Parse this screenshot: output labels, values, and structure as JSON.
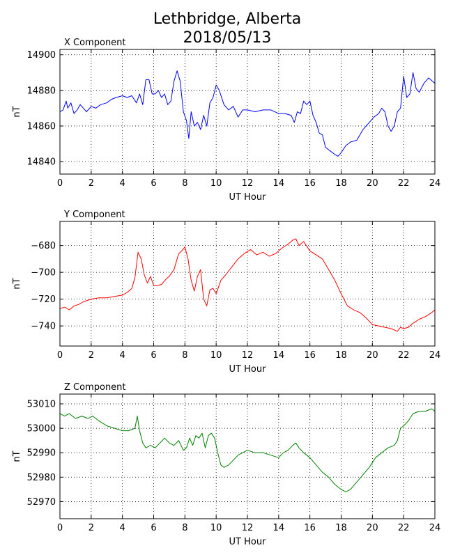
{
  "figure": {
    "title_line1": "Lethbridge, Alberta",
    "title_line2": "2018/05/13"
  },
  "chart_data": [
    {
      "type": "line",
      "title": "X Component",
      "xlabel": "UT Hour",
      "ylabel": "nT",
      "xlim": [
        0,
        24
      ],
      "ylim": [
        14833,
        14903
      ],
      "xticks": [
        0,
        2,
        4,
        6,
        8,
        10,
        12,
        14,
        16,
        18,
        20,
        22,
        24
      ],
      "yticks": [
        14840,
        14860,
        14880,
        14900
      ],
      "grid": true,
      "color": "#0000ff",
      "series": [
        {
          "x": [
            0,
            0.2,
            0.4,
            0.5,
            0.7,
            0.9,
            1.1,
            1.3,
            1.5,
            1.7,
            2,
            2.3,
            2.6,
            3,
            3.3,
            3.6,
            4,
            4.3,
            4.6,
            4.9,
            5.1,
            5.3,
            5.5,
            5.7,
            5.9,
            6.1,
            6.3,
            6.5,
            6.7,
            6.9,
            7.1,
            7.3,
            7.5,
            7.7,
            7.9,
            8.1,
            8.25,
            8.4,
            8.6,
            8.8,
            9,
            9.2,
            9.4,
            9.6,
            9.8,
            10,
            10.2,
            10.5,
            10.8,
            11.1,
            11.4,
            11.7,
            12,
            12.5,
            13,
            13.5,
            14,
            14.4,
            14.8,
            15,
            15.2,
            15.4,
            15.6,
            15.8,
            16,
            16.2,
            16.4,
            16.6,
            16.8,
            17,
            17.3,
            17.6,
            17.8,
            18,
            18.3,
            18.6,
            19,
            19.4,
            19.8,
            20.1,
            20.4,
            20.6,
            20.8,
            21,
            21.2,
            21.4,
            21.6,
            21.8,
            22,
            22.2,
            22.4,
            22.6,
            22.8,
            23,
            23.3,
            23.6,
            24
          ],
          "y": [
            14868,
            14869,
            14874,
            14870,
            14873,
            14867,
            14869,
            14872,
            14870,
            14868,
            14871,
            14870,
            14872,
            14873,
            14875,
            14876,
            14877,
            14876,
            14877,
            14873,
            14878,
            14872,
            14886,
            14886,
            14878,
            14878,
            14880,
            14876,
            14878,
            14872,
            14874,
            14885,
            14891,
            14885,
            14868,
            14863,
            14853,
            14868,
            14860,
            14862,
            14858,
            14866,
            14860,
            14873,
            14876,
            14883,
            14880,
            14872,
            14869,
            14871,
            14865,
            14869,
            14869,
            14868,
            14869,
            14869,
            14867,
            14867,
            14866,
            14862,
            14868,
            14867,
            14874,
            14872,
            14874,
            14866,
            14862,
            14856,
            14855,
            14848,
            14846,
            14844,
            14843,
            14845,
            14849,
            14851,
            14852,
            14858,
            14862,
            14865,
            14867,
            14870,
            14868,
            14860,
            14857,
            14860,
            14868,
            14870,
            14888,
            14876,
            14878,
            14890,
            14881,
            14879,
            14884,
            14887,
            14884
          ]
        }
      ]
    },
    {
      "type": "line",
      "title": "Y Component",
      "xlabel": "UT Hour",
      "ylabel": "nT",
      "xlim": [
        0,
        24
      ],
      "ylim": [
        -755,
        -662
      ],
      "xticks": [
        0,
        2,
        4,
        6,
        8,
        10,
        12,
        14,
        16,
        18,
        20,
        22,
        24
      ],
      "yticks": [
        -680,
        -700,
        -720,
        -740
      ],
      "grid": true,
      "color": "#ff0000",
      "series": [
        {
          "x": [
            0,
            0.3,
            0.6,
            0.9,
            1.2,
            1.5,
            2,
            2.5,
            3,
            3.5,
            4,
            4.3,
            4.6,
            4.8,
            5,
            5.2,
            5.4,
            5.6,
            5.8,
            6,
            6.2,
            6.5,
            6.8,
            7,
            7.3,
            7.6,
            7.8,
            8,
            8.2,
            8.4,
            8.6,
            8.8,
            9,
            9.2,
            9.4,
            9.6,
            9.8,
            10,
            10.3,
            10.6,
            11,
            11.4,
            11.8,
            12.2,
            12.6,
            13,
            13.4,
            13.8,
            14.2,
            14.6,
            14.9,
            15.1,
            15.3,
            15.6,
            16,
            16.4,
            16.8,
            17.2,
            17.6,
            18,
            18.4,
            18.8,
            19.2,
            19.6,
            20,
            20.4,
            20.8,
            21.2,
            21.6,
            21.8,
            22,
            22.3,
            22.6,
            23,
            23.4,
            23.8,
            24
          ],
          "y": [
            -727,
            -726,
            -728,
            -725,
            -724,
            -722,
            -720,
            -719,
            -719,
            -718,
            -717,
            -715,
            -712,
            -704,
            -685,
            -690,
            -702,
            -708,
            -703,
            -710,
            -710,
            -709,
            -705,
            -703,
            -698,
            -686,
            -684,
            -681,
            -690,
            -706,
            -714,
            -703,
            -698,
            -720,
            -725,
            -713,
            -712,
            -716,
            -706,
            -702,
            -696,
            -690,
            -686,
            -683,
            -687,
            -685,
            -688,
            -686,
            -682,
            -679,
            -676,
            -675,
            -680,
            -677,
            -684,
            -687,
            -690,
            -698,
            -706,
            -716,
            -725,
            -728,
            -730,
            -734,
            -739,
            -740,
            -741,
            -742,
            -744,
            -741,
            -742,
            -741,
            -738,
            -735,
            -733,
            -730,
            -728
          ]
        }
      ]
    },
    {
      "type": "line",
      "title": "Z Component",
      "xlabel": "UT Hour",
      "ylabel": "nT",
      "xlim": [
        0,
        24
      ],
      "ylim": [
        52963,
        53014
      ],
      "xticks": [
        0,
        2,
        4,
        6,
        8,
        10,
        12,
        14,
        16,
        18,
        20,
        22,
        24
      ],
      "yticks": [
        52970,
        52980,
        52990,
        53000,
        53010
      ],
      "grid": true,
      "color": "#008000",
      "series": [
        {
          "x": [
            0,
            0.3,
            0.6,
            1,
            1.4,
            1.8,
            2.1,
            2.5,
            3,
            3.5,
            4,
            4.4,
            4.8,
            4.95,
            5.1,
            5.3,
            5.5,
            5.8,
            6.1,
            6.4,
            6.7,
            7,
            7.3,
            7.6,
            7.9,
            8.1,
            8.3,
            8.5,
            8.7,
            8.9,
            9.1,
            9.3,
            9.5,
            9.7,
            9.9,
            10.1,
            10.3,
            10.5,
            10.8,
            11.1,
            11.4,
            11.7,
            12,
            12.5,
            13,
            13.5,
            14,
            14.3,
            14.6,
            14.9,
            15.1,
            15.3,
            15.6,
            16,
            16.4,
            16.8,
            17.2,
            17.6,
            18,
            18.3,
            18.6,
            19,
            19.4,
            19.8,
            20.2,
            20.6,
            21,
            21.4,
            21.6,
            21.8,
            22,
            22.3,
            22.6,
            23,
            23.4,
            23.8,
            24
          ],
          "y": [
            53006,
            53005,
            53006,
            53004,
            53005,
            53004,
            53005,
            53003,
            53001,
            53000,
            52999,
            52999,
            53000,
            53005,
            52999,
            52994,
            52992,
            52993,
            52992,
            52994,
            52996,
            52994,
            52993,
            52995,
            52991,
            52992,
            52996,
            52993,
            52997,
            52996,
            52998,
            52992,
            52997,
            52998,
            52996,
            52990,
            52985,
            52984,
            52985,
            52987,
            52989,
            52990,
            52991,
            52990,
            52990,
            52989,
            52988,
            52990,
            52991,
            52993,
            52994,
            52992,
            52990,
            52988,
            52985,
            52982,
            52980,
            52977,
            52975,
            52974,
            52975,
            52978,
            52981,
            52984,
            52988,
            52990,
            52992,
            52993,
            52995,
            53000,
            53001,
            53003,
            53006,
            53007,
            53007,
            53008,
            53007
          ]
        }
      ]
    }
  ]
}
